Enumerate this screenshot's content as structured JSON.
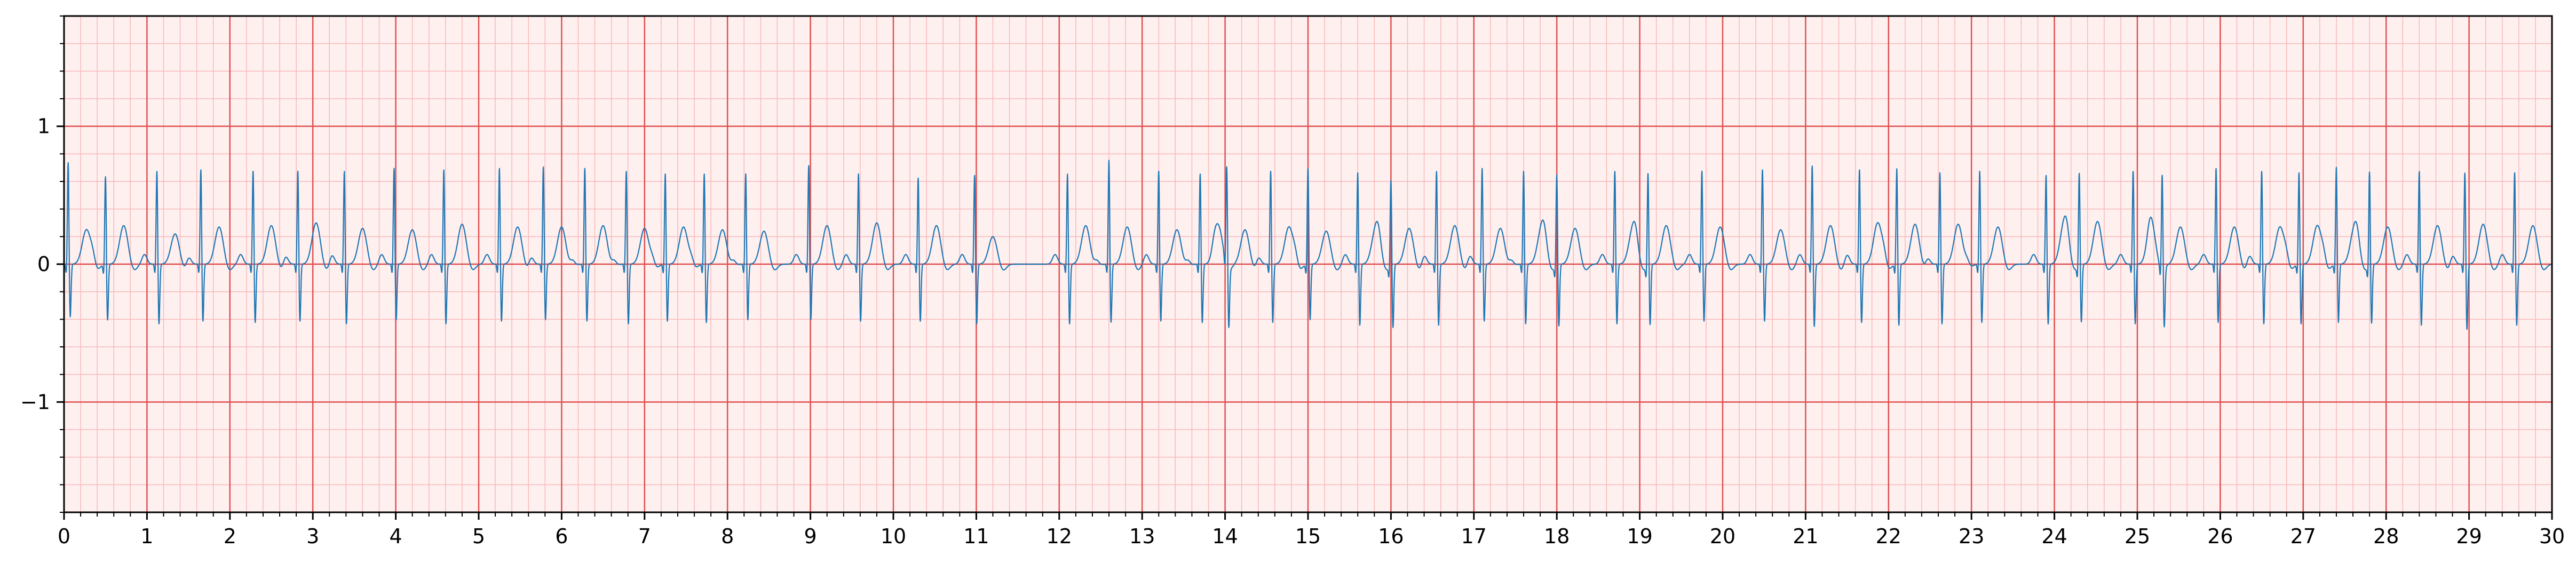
{
  "chart_data": {
    "type": "line",
    "title": "",
    "xlabel": "",
    "ylabel": "",
    "xlim": [
      0,
      30
    ],
    "ylim": [
      -1.8,
      1.8
    ],
    "x_major_ticks": [
      0,
      1,
      2,
      3,
      4,
      5,
      6,
      7,
      8,
      9,
      10,
      11,
      12,
      13,
      14,
      15,
      16,
      17,
      18,
      19,
      20,
      21,
      22,
      23,
      24,
      25,
      26,
      27,
      28,
      29,
      30
    ],
    "x_tick_labels": [
      "0",
      "1",
      "2",
      "3",
      "4",
      "5",
      "6",
      "7",
      "8",
      "9",
      "10",
      "11",
      "12",
      "13",
      "14",
      "15",
      "16",
      "17",
      "18",
      "19",
      "20",
      "21",
      "22",
      "23",
      "24",
      "25",
      "26",
      "27",
      "28",
      "29",
      "30"
    ],
    "x_minor_step": 0.2,
    "y_major_ticks": [
      -1,
      0,
      1
    ],
    "y_tick_labels": [
      "−1",
      "0",
      "1"
    ],
    "y_minor_step": 0.2,
    "grid": {
      "major": true,
      "minor": true,
      "major_color": "#e05050",
      "minor_color": "#f7b8b8",
      "background": "#fff0f0"
    },
    "line_color": "#1f77b4",
    "legend": "none",
    "series": [
      {
        "beat_times": [
          0.05,
          0.5,
          1.12,
          1.65,
          2.28,
          2.82,
          3.38,
          3.98,
          4.58,
          5.25,
          5.78,
          6.28,
          6.78,
          7.25,
          7.72,
          8.22,
          8.98,
          9.58,
          10.3,
          10.98,
          12.1,
          12.6,
          13.2,
          13.7,
          14.02,
          14.55,
          15.0,
          15.6,
          16.0,
          16.55,
          17.1,
          17.6,
          18.0,
          18.7,
          19.1,
          19.75,
          20.48,
          21.08,
          21.65,
          22.1,
          22.62,
          23.1,
          23.9,
          24.3,
          24.95,
          25.3,
          25.95,
          26.5,
          26.95,
          27.4,
          27.8,
          28.4,
          28.95,
          29.55
        ],
        "r_peaks": [
          0.76,
          0.66,
          0.7,
          0.71,
          0.7,
          0.7,
          0.7,
          0.72,
          0.71,
          0.72,
          0.73,
          0.72,
          0.7,
          0.68,
          0.68,
          0.68,
          0.74,
          0.68,
          0.65,
          0.67,
          0.68,
          0.78,
          0.7,
          0.68,
          0.74,
          0.7,
          0.72,
          0.69,
          0.65,
          0.7,
          0.72,
          0.7,
          0.69,
          0.7,
          0.7,
          0.7,
          0.71,
          0.74,
          0.71,
          0.72,
          0.69,
          0.7,
          0.67,
          0.7,
          0.7,
          0.71,
          0.72,
          0.7,
          0.69,
          0.73,
          0.71,
          0.7,
          0.69,
          0.69
        ],
        "s_troughs": [
          -0.4,
          -0.42,
          -0.45,
          -0.43,
          -0.44,
          -0.43,
          -0.45,
          -0.42,
          -0.45,
          -0.43,
          -0.42,
          -0.43,
          -0.45,
          -0.43,
          -0.44,
          -0.42,
          -0.42,
          -0.43,
          -0.43,
          -0.45,
          -0.45,
          -0.44,
          -0.43,
          -0.44,
          -0.44,
          -0.44,
          -0.42,
          -0.46,
          -0.47,
          -0.46,
          -0.43,
          -0.45,
          -0.46,
          -0.45,
          -0.45,
          -0.43,
          -0.43,
          -0.47,
          -0.44,
          -0.46,
          -0.45,
          -0.44,
          -0.45,
          -0.43,
          -0.45,
          -0.44,
          -0.44,
          -0.45,
          -0.45,
          -0.44,
          -0.44,
          -0.46,
          -0.49,
          -0.46
        ],
        "t_peaks": [
          0.25,
          0.28,
          0.22,
          0.27,
          0.28,
          0.3,
          0.26,
          0.25,
          0.29,
          0.27,
          0.27,
          0.28,
          0.26,
          0.27,
          0.25,
          0.24,
          0.28,
          0.3,
          0.28,
          0.2,
          0.28,
          0.27,
          0.25,
          0.27,
          0.25,
          0.27,
          0.24,
          0.26,
          0.26,
          0.28,
          0.26,
          0.27,
          0.26,
          0.26,
          0.28,
          0.27,
          0.25,
          0.28,
          0.3,
          0.29,
          0.29,
          0.27,
          0.3,
          0.31,
          0.28,
          0.27,
          0.27,
          0.27,
          0.28,
          0.26,
          0.27,
          0.28,
          0.29,
          0.28
        ],
        "baseline": 0.0
      }
    ]
  }
}
